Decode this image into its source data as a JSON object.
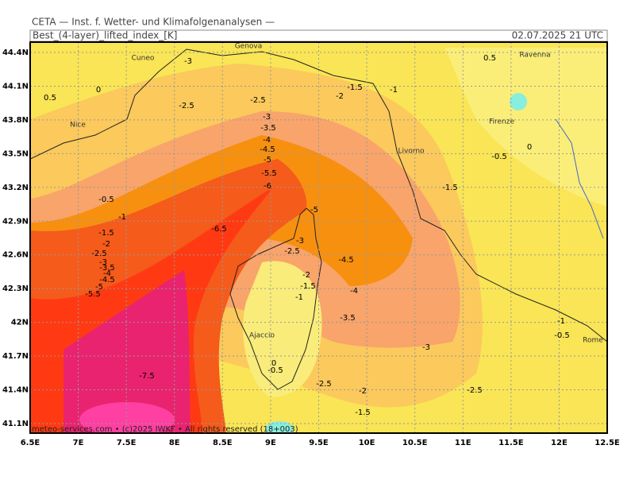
{
  "header": {
    "title": "CETA — Inst. f. Wetter- und Klimafolgenanalysen —",
    "parameter": "Best_(4-layer)_lifted_index_[K]",
    "datetime": "02.07.2025 21 UTC"
  },
  "map": {
    "lon_ticks": [
      "6.5E",
      "7E",
      "7.5E",
      "8E",
      "8.5E",
      "9E",
      "9.5E",
      "10E",
      "10.5E",
      "11E",
      "11.5E",
      "12E",
      "12.5E"
    ],
    "lat_ticks": [
      "44.4N",
      "44.1N",
      "43.8N",
      "43.5N",
      "43.2N",
      "42.9N",
      "42.6N",
      "42.3N",
      "42N",
      "41.7N",
      "41.4N",
      "41.1N"
    ],
    "places": [
      "Cuneo",
      "Genova",
      "Nice",
      "Livorno",
      "Firenze",
      "Ravenna",
      "Ajaccio",
      "Rome"
    ],
    "contour_labels": [
      -3,
      -2.5,
      0,
      0.5,
      -2.5,
      -2,
      -1.5,
      -1,
      0.5,
      -3,
      -3.5,
      -4,
      -4.5,
      -5,
      -5.5,
      -6,
      -0.5,
      -1,
      -1.5,
      -2,
      -2.5,
      -3,
      -3.5,
      -4,
      -4.5,
      -5,
      -5.5,
      -6.5,
      -5,
      -3,
      -2.5,
      -4.5,
      -2,
      -1.5,
      -1,
      -4,
      -3.5,
      -3,
      0,
      -0.5,
      -1.5,
      -1,
      -0.5,
      -7.5,
      0,
      -0.5,
      -2.5,
      -2,
      -2.5,
      -1.5
    ]
  },
  "footer": "meteo-services.com • (c)2025 IWKF • All rights reserved (18+003)"
}
